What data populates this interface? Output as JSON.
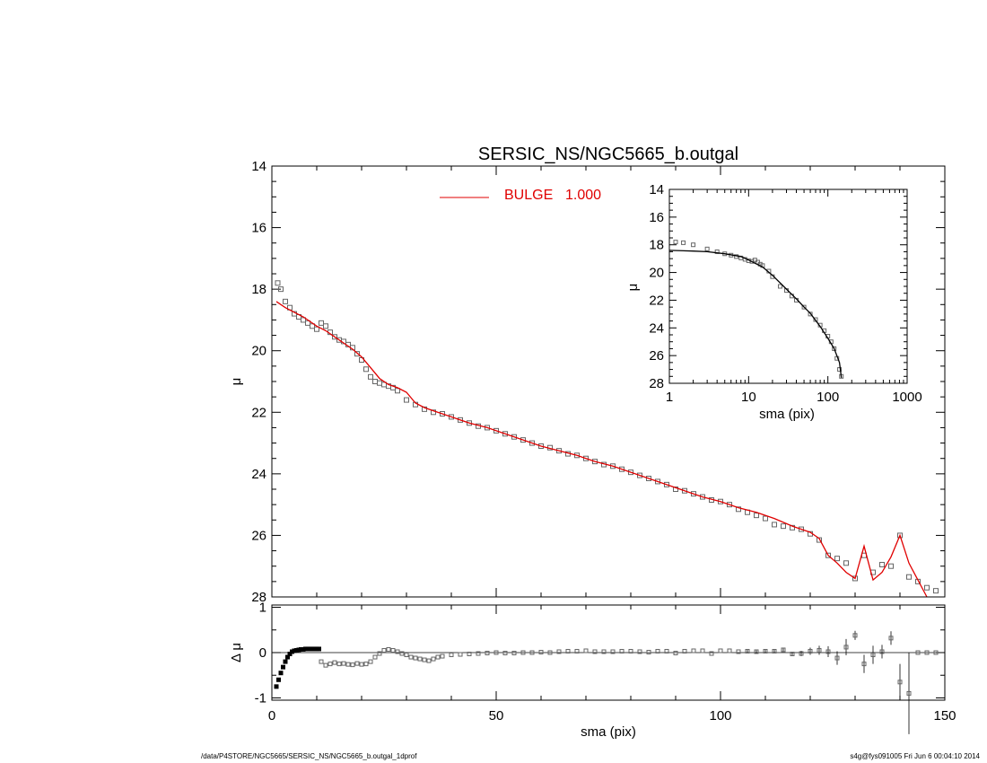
{
  "chart_data": [
    {
      "type": "scatter",
      "panel": "main",
      "title": "SERSIC_NS/NGC5665_b.outgal",
      "xlabel": "sma (pix)",
      "ylabel": "μ",
      "xlim": [
        0,
        150
      ],
      "ylim": [
        28,
        14
      ],
      "y_inverted": true,
      "xticks": [
        0,
        50,
        100,
        150
      ],
      "yticks": [
        14,
        16,
        18,
        20,
        22,
        24,
        26,
        28
      ],
      "legend": {
        "label": "BULGE",
        "value": "1.000",
        "color": "#e00000",
        "placement": "top-center"
      },
      "series": [
        {
          "kind": "points",
          "color": "#666666",
          "marker": "square",
          "x": [
            1.3,
            2,
            3,
            4,
            5,
            6,
            7,
            8,
            9,
            10,
            11,
            12,
            13,
            14,
            15,
            16,
            17,
            18,
            19,
            20,
            21,
            22,
            23,
            24,
            25,
            26,
            27,
            28,
            30,
            32,
            34,
            36,
            38,
            40,
            42,
            44,
            46,
            48,
            50,
            52,
            54,
            56,
            58,
            60,
            62,
            64,
            66,
            68,
            70,
            72,
            74,
            76,
            78,
            80,
            82,
            84,
            86,
            88,
            90,
            92,
            94,
            96,
            98,
            100,
            102,
            104,
            106,
            108,
            110,
            112,
            114,
            116,
            118,
            120,
            122,
            124,
            126,
            128,
            130,
            132,
            134,
            136,
            138,
            140,
            142,
            144,
            146,
            148
          ],
          "y": [
            17.8,
            18.0,
            18.4,
            18.6,
            18.8,
            18.9,
            19.0,
            19.1,
            19.2,
            19.3,
            19.1,
            19.2,
            19.4,
            19.55,
            19.65,
            19.7,
            19.8,
            19.9,
            20.1,
            20.3,
            20.6,
            20.85,
            21.0,
            21.05,
            21.1,
            21.15,
            21.2,
            21.3,
            21.6,
            21.75,
            21.9,
            22.0,
            22.05,
            22.15,
            22.25,
            22.35,
            22.45,
            22.5,
            22.6,
            22.7,
            22.8,
            22.9,
            23.0,
            23.1,
            23.15,
            23.25,
            23.35,
            23.4,
            23.5,
            23.6,
            23.7,
            23.75,
            23.85,
            23.95,
            24.05,
            24.15,
            24.25,
            24.35,
            24.5,
            24.55,
            24.65,
            24.75,
            24.85,
            24.9,
            25.0,
            25.15,
            25.25,
            25.35,
            25.45,
            25.65,
            25.7,
            25.75,
            25.8,
            25.95,
            26.15,
            26.65,
            26.75,
            26.9,
            27.4,
            26.65,
            27.2,
            26.95,
            27.0,
            26.0,
            27.35,
            27.5,
            27.7,
            27.8
          ]
        },
        {
          "kind": "line",
          "name": "BULGE",
          "color": "#e00000",
          "x": [
            1,
            3,
            5,
            7,
            9,
            10,
            12,
            14,
            16,
            18,
            20,
            22,
            24,
            26,
            28,
            30,
            32,
            34,
            36,
            40,
            44,
            48,
            52,
            56,
            60,
            64,
            68,
            72,
            76,
            80,
            84,
            88,
            92,
            96,
            100,
            104,
            108,
            112,
            116,
            120,
            122,
            124,
            126,
            128,
            130,
            132,
            134,
            136,
            138,
            140,
            142,
            146
          ],
          "y": [
            18.4,
            18.6,
            18.75,
            18.9,
            19.1,
            19.2,
            19.35,
            19.55,
            19.75,
            19.95,
            20.2,
            20.55,
            20.9,
            21.1,
            21.2,
            21.35,
            21.7,
            21.85,
            21.95,
            22.15,
            22.35,
            22.5,
            22.7,
            22.9,
            23.1,
            23.25,
            23.4,
            23.6,
            23.75,
            23.95,
            24.15,
            24.35,
            24.55,
            24.75,
            24.9,
            25.1,
            25.25,
            25.45,
            25.7,
            25.9,
            26.1,
            26.65,
            26.9,
            27.2,
            27.4,
            26.35,
            27.45,
            27.2,
            26.7,
            26.0,
            26.9,
            28.0
          ]
        }
      ]
    },
    {
      "type": "line",
      "panel": "inset",
      "xlabel": "sma (pix)",
      "ylabel": "μ",
      "x_scale": "log",
      "xlim": [
        1,
        1000
      ],
      "ylim": [
        28,
        14
      ],
      "y_inverted": true,
      "xticks": [
        1,
        10,
        100,
        1000
      ],
      "yticks": [
        14,
        16,
        18,
        20,
        22,
        24,
        26,
        28
      ],
      "series": [
        {
          "kind": "points",
          "color": "#666666",
          "x": [
            1.2,
            1.5,
            2,
            3,
            4,
            5,
            6,
            7,
            8,
            9,
            10,
            11,
            12,
            13,
            14,
            15,
            18,
            20,
            25,
            30,
            35,
            40,
            50,
            60,
            70,
            80,
            90,
            100,
            110,
            120,
            130,
            140,
            148
          ],
          "y": [
            17.8,
            17.85,
            18.0,
            18.3,
            18.5,
            18.65,
            18.75,
            18.85,
            18.95,
            19.05,
            19.15,
            19.2,
            19.1,
            19.25,
            19.4,
            19.5,
            19.9,
            20.3,
            21.0,
            21.3,
            21.7,
            22.0,
            22.5,
            23.0,
            23.4,
            23.8,
            24.2,
            24.6,
            25.0,
            25.5,
            26.2,
            27.0,
            27.5
          ]
        },
        {
          "kind": "line",
          "color": "#000000",
          "x": [
            1,
            2,
            3,
            5,
            8,
            10,
            15,
            20,
            30,
            40,
            50,
            60,
            80,
            100,
            120,
            140,
            148
          ],
          "y": [
            18.4,
            18.45,
            18.5,
            18.65,
            18.85,
            19.1,
            19.6,
            20.2,
            21.2,
            21.9,
            22.5,
            22.95,
            23.9,
            24.75,
            25.5,
            26.5,
            27.6
          ]
        }
      ]
    },
    {
      "type": "scatter",
      "panel": "residual",
      "xlabel": "sma (pix)",
      "ylabel": "Δ μ",
      "xlim": [
        0,
        150
      ],
      "ylim": [
        -1.05,
        1.05
      ],
      "xticks": [
        0,
        50,
        100,
        150
      ],
      "yticks": [
        -1,
        0,
        1
      ],
      "zero_line": true,
      "series": [
        {
          "kind": "points",
          "color": "#000000",
          "x": [
            1,
            1.5,
            2,
            2.5,
            3,
            3.5,
            4,
            4.5,
            5,
            5.5,
            6,
            6.5,
            7,
            7.5,
            8,
            8.5,
            9,
            9.5,
            10,
            10.5
          ],
          "y": [
            -0.75,
            -0.6,
            -0.45,
            -0.32,
            -0.2,
            -0.1,
            -0.03,
            0.02,
            0.04,
            0.05,
            0.06,
            0.07,
            0.07,
            0.08,
            0.08,
            0.08,
            0.08,
            0.08,
            0.08,
            0.08
          ]
        },
        {
          "kind": "points",
          "color": "#666666",
          "x": [
            11,
            12,
            13,
            14,
            15,
            16,
            17,
            18,
            19,
            20,
            21,
            22,
            23,
            24,
            25,
            26,
            27,
            28,
            29,
            30,
            31,
            32,
            33,
            34,
            35,
            36,
            37,
            38,
            40,
            42,
            44,
            46,
            48,
            50,
            52,
            54,
            56,
            58,
            60,
            62,
            64,
            66,
            68,
            70,
            72,
            74,
            76,
            78,
            80,
            82,
            84,
            86,
            88,
            90,
            92,
            94,
            96,
            98,
            100,
            102,
            104,
            106,
            108,
            110,
            112,
            114,
            116,
            118,
            120,
            122,
            124,
            126,
            128,
            130,
            132,
            134,
            136,
            138,
            140,
            142,
            144,
            146,
            148
          ],
          "y": [
            -0.2,
            -0.28,
            -0.25,
            -0.22,
            -0.25,
            -0.24,
            -0.26,
            -0.27,
            -0.24,
            -0.26,
            -0.25,
            -0.2,
            -0.1,
            -0.02,
            0.05,
            0.07,
            0.05,
            0.02,
            -0.02,
            -0.05,
            -0.1,
            -0.12,
            -0.14,
            -0.16,
            -0.18,
            -0.14,
            -0.1,
            -0.08,
            -0.05,
            -0.04,
            -0.03,
            -0.02,
            -0.01,
            0.0,
            -0.01,
            -0.01,
            0.0,
            0.0,
            0.01,
            0.0,
            0.02,
            0.03,
            0.03,
            0.04,
            0.02,
            0.02,
            0.02,
            0.03,
            0.03,
            0.02,
            0.01,
            0.03,
            0.03,
            -0.01,
            0.03,
            0.04,
            0.04,
            -0.02,
            0.04,
            0.04,
            0.02,
            0.03,
            0.02,
            0.03,
            0.03,
            0.06,
            -0.03,
            -0.02,
            0.03,
            0.05,
            0.02,
            -0.12,
            0.12,
            0.38,
            -0.25,
            -0.05,
            0.02,
            0.32,
            -0.65,
            -0.9,
            0.0,
            0.0,
            0.0
          ],
          "err": [
            0.01,
            0.01,
            0.01,
            0.01,
            0.01,
            0.01,
            0.01,
            0.01,
            0.01,
            0.01,
            0.01,
            0.01,
            0.01,
            0.01,
            0.01,
            0.01,
            0.01,
            0.01,
            0.01,
            0.01,
            0.01,
            0.01,
            0.01,
            0.01,
            0.01,
            0.01,
            0.01,
            0.01,
            0.01,
            0.01,
            0.01,
            0.01,
            0.01,
            0.01,
            0.01,
            0.01,
            0.01,
            0.01,
            0.01,
            0.01,
            0.01,
            0.01,
            0.01,
            0.01,
            0.01,
            0.01,
            0.01,
            0.01,
            0.01,
            0.01,
            0.01,
            0.01,
            0.01,
            0.01,
            0.01,
            0.01,
            0.02,
            0.02,
            0.02,
            0.02,
            0.02,
            0.03,
            0.03,
            0.03,
            0.04,
            0.05,
            0.05,
            0.06,
            0.08,
            0.1,
            0.12,
            0.15,
            0.18,
            0.1,
            0.2,
            0.2,
            0.15,
            0.15,
            0.4,
            0.9,
            0.0,
            0.0,
            0.0
          ]
        }
      ]
    }
  ],
  "footer": {
    "left": "/data/P4STORE/NGC5665/SERSIC_NS/NGC5665_b.outgal_1dprof",
    "right": "s4g@fys091005  Fri Jun  6 00:04:10 2014"
  }
}
